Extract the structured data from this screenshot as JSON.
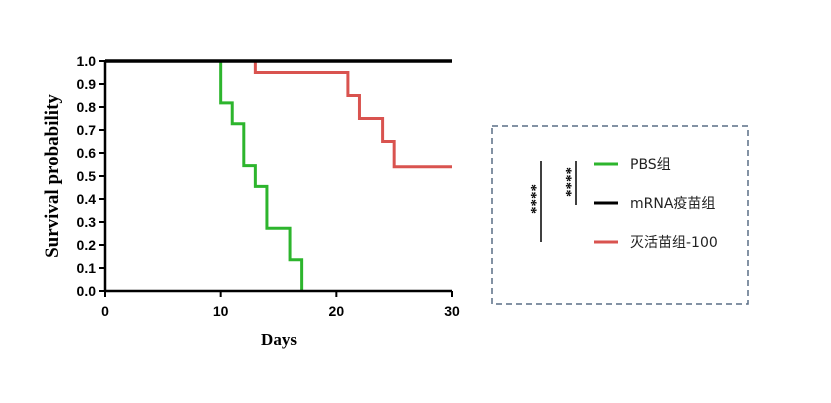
{
  "chart_data": {
    "type": "line",
    "step": true,
    "xlabel": "Days",
    "ylabel": "Survival probability",
    "xlim": [
      0,
      30
    ],
    "ylim": [
      0,
      1.0
    ],
    "xticks": [
      "0",
      "10",
      "20",
      "30"
    ],
    "yticks": [
      "0.0",
      "0.1",
      "0.2",
      "0.3",
      "0.4",
      "0.5",
      "0.6",
      "0.7",
      "0.8",
      "0.9",
      "1.0"
    ],
    "grid": false,
    "legend_placement": "right",
    "series": [
      {
        "name": "PBS组",
        "color": "#2db52d",
        "x": [
          0,
          10,
          11,
          12,
          13,
          14,
          16,
          17
        ],
        "y": [
          1.0,
          0.818,
          0.727,
          0.545,
          0.455,
          0.273,
          0.136,
          0.0
        ]
      },
      {
        "name": "mRNA疫苗组",
        "color": "#000000",
        "x": [
          0,
          30
        ],
        "y": [
          1.0,
          1.0
        ]
      },
      {
        "name": "灭活苗组-100",
        "color": "#d9534f",
        "x": [
          13,
          21,
          22,
          24,
          25,
          30
        ],
        "y": [
          0.95,
          0.85,
          0.75,
          0.65,
          0.54,
          0.54
        ]
      }
    ],
    "annotations": [
      "****",
      "****"
    ]
  }
}
